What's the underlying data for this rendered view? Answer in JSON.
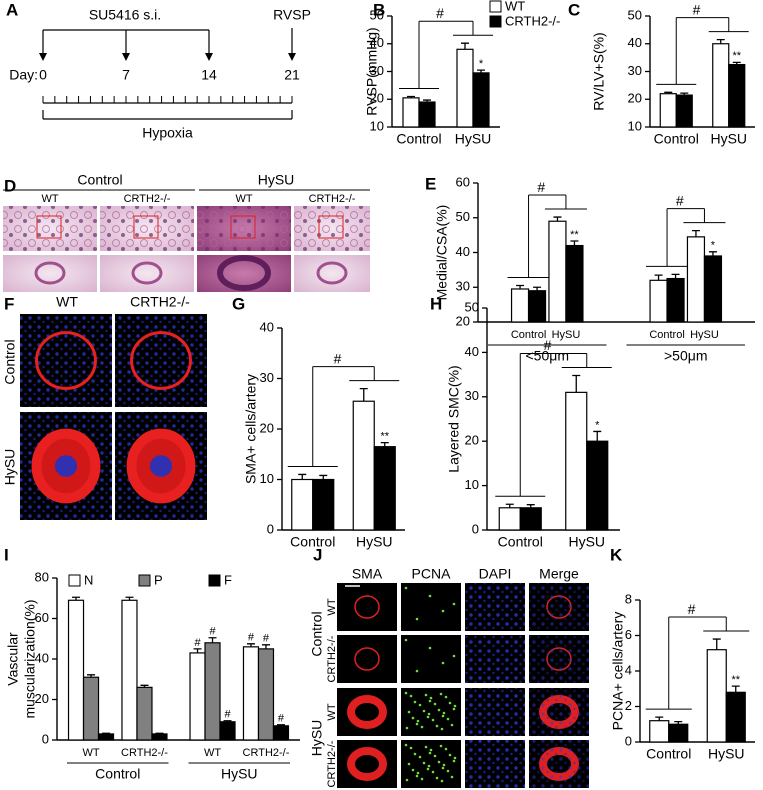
{
  "figure": {
    "panels": [
      "A",
      "B",
      "C",
      "D",
      "E",
      "F",
      "G",
      "H",
      "I",
      "J",
      "K"
    ],
    "timeline": {
      "treatment": "SU5416 s.i.",
      "measurement": "RVSP",
      "day_label": "Day:",
      "days": [
        0,
        7,
        14,
        21
      ],
      "condition": "Hypoxia"
    },
    "histology": {
      "conditions": [
        "Control",
        "HySU"
      ],
      "genotypes": [
        "WT",
        "CRTH2-/-",
        "WT",
        "CRTH2-/-"
      ]
    },
    "immunofluorescence": {
      "genotypes": [
        "WT",
        "CRTH2-/-"
      ],
      "conditions": [
        "Control",
        "HySU"
      ]
    },
    "staining": {
      "channels": [
        "SMA",
        "PCNA",
        "DAPI",
        "Merge"
      ],
      "channel_colors": [
        "#e0201b",
        "#66dd33",
        "#2233cc",
        "#f0a030"
      ],
      "conditions": [
        "Control",
        "HySU"
      ],
      "genotypes": [
        "WT",
        "CRTH2-/-",
        "WT",
        "CRTH2-/-"
      ]
    }
  },
  "chart_data": [
    {
      "type": "bar",
      "ylabel": "RVSP(mmHg)",
      "categories": [
        "Control",
        "HySU"
      ],
      "series": [
        {
          "name": "WT",
          "color": "#ffffff",
          "values": [
            20.5,
            38
          ],
          "errors": [
            0.5,
            2.2
          ]
        },
        {
          "name": "CRTH2-/-",
          "color": "#000000",
          "values": [
            19,
            29.5
          ],
          "errors": [
            0.7,
            1
          ],
          "significance": [
            null,
            "*"
          ]
        }
      ],
      "comparison_labels": [
        "#"
      ],
      "ylim": [
        10,
        50
      ],
      "yticks": [
        10,
        20,
        30,
        40,
        50
      ],
      "legend": "top-right"
    },
    {
      "type": "bar",
      "ylabel": "RV/LV+S(%)",
      "categories": [
        "Control",
        "HySU"
      ],
      "series": [
        {
          "name": "WT",
          "color": "#ffffff",
          "values": [
            22,
            40
          ],
          "errors": [
            0.5,
            1.5
          ]
        },
        {
          "name": "CRTH2-/-",
          "color": "#000000",
          "values": [
            21.5,
            32.5
          ],
          "errors": [
            0.7,
            0.8
          ],
          "significance": [
            null,
            "**"
          ]
        }
      ],
      "comparison_labels": [
        "#"
      ],
      "ylim": [
        10,
        50
      ],
      "yticks": [
        10,
        20,
        30,
        40,
        50
      ]
    },
    {
      "type": "bar",
      "ylabel": "Medial/CSA(%)",
      "categories": [
        "Control",
        "HySU",
        "Control",
        "HySU"
      ],
      "group_labels": [
        "<50μm",
        ">50μm"
      ],
      "series": [
        {
          "name": "WT",
          "color": "#ffffff",
          "values": [
            29.5,
            49,
            32,
            44.5
          ],
          "errors": [
            1,
            1.2,
            1.5,
            1.8
          ]
        },
        {
          "name": "CRTH2-/-",
          "color": "#000000",
          "values": [
            29,
            42,
            32.5,
            39
          ],
          "errors": [
            1,
            1.3,
            1.2,
            1.2
          ],
          "significance": [
            null,
            "**",
            null,
            "*"
          ]
        }
      ],
      "comparison_labels": [
        "#",
        "#"
      ],
      "ylim": [
        20,
        60
      ],
      "yticks": [
        20,
        30,
        40,
        50,
        60
      ]
    },
    {
      "type": "bar",
      "ylabel": "SMA+ cells/artery",
      "categories": [
        "Control",
        "HySU"
      ],
      "series": [
        {
          "name": "WT",
          "color": "#ffffff",
          "values": [
            10,
            25.5
          ],
          "errors": [
            1,
            2.5
          ]
        },
        {
          "name": "CRTH2-/-",
          "color": "#000000",
          "values": [
            10,
            16.5
          ],
          "errors": [
            0.8,
            0.8
          ],
          "significance": [
            null,
            "**"
          ]
        }
      ],
      "comparison_labels": [
        "#"
      ],
      "ylim": [
        0,
        40
      ],
      "yticks": [
        0,
        10,
        20,
        30,
        40
      ]
    },
    {
      "type": "bar",
      "ylabel": "Layered SMC(%)",
      "categories": [
        "Control",
        "HySU"
      ],
      "series": [
        {
          "name": "WT",
          "color": "#ffffff",
          "values": [
            5,
            31
          ],
          "errors": [
            0.8,
            3.8
          ]
        },
        {
          "name": "CRTH2-/-",
          "color": "#000000",
          "values": [
            5,
            20
          ],
          "errors": [
            0.7,
            2.2
          ],
          "significance": [
            null,
            "*"
          ]
        }
      ],
      "comparison_labels": [
        "#"
      ],
      "ylim": [
        0,
        50
      ],
      "yticks": [
        0,
        10,
        20,
        30,
        40,
        50
      ]
    },
    {
      "type": "bar",
      "ylabel": [
        "Vascular",
        "muscularization(%)"
      ],
      "categories": [
        "WT",
        "CRTH2-/-",
        "WT",
        "CRTH2-/-"
      ],
      "group_labels": [
        "Control",
        "HySU"
      ],
      "series": [
        {
          "name": "N",
          "color": "#ffffff",
          "values": [
            69,
            69,
            43,
            46
          ],
          "errors": [
            1.5,
            1.5,
            2,
            1.5
          ],
          "significance": [
            null,
            null,
            "#",
            "#"
          ]
        },
        {
          "name": "P",
          "color": "#808080",
          "values": [
            31,
            26,
            48,
            45
          ],
          "errors": [
            1.2,
            1,
            2.5,
            2
          ],
          "significance": [
            null,
            null,
            "#",
            "#"
          ]
        },
        {
          "name": "F",
          "color": "#000000",
          "values": [
            3,
            3,
            9,
            7
          ],
          "errors": [
            0.3,
            0.3,
            0.5,
            0.5
          ],
          "significance": [
            null,
            null,
            "#",
            "#"
          ]
        }
      ],
      "ylim": [
        0,
        80
      ],
      "yticks": [
        0,
        20,
        40,
        60,
        80
      ],
      "legend": "top"
    },
    {
      "type": "bar",
      "ylabel": "PCNA+ cells/artery",
      "categories": [
        "Control",
        "HySU"
      ],
      "series": [
        {
          "name": "WT",
          "color": "#ffffff",
          "values": [
            1.2,
            5.2
          ],
          "errors": [
            0.2,
            0.6
          ]
        },
        {
          "name": "CRTH2-/-",
          "color": "#000000",
          "values": [
            1,
            2.8
          ],
          "errors": [
            0.15,
            0.35
          ],
          "significance": [
            null,
            "**"
          ]
        }
      ],
      "comparison_labels": [
        "#"
      ],
      "ylim": [
        0,
        8
      ],
      "yticks": [
        0,
        2,
        4,
        6,
        8
      ]
    }
  ]
}
